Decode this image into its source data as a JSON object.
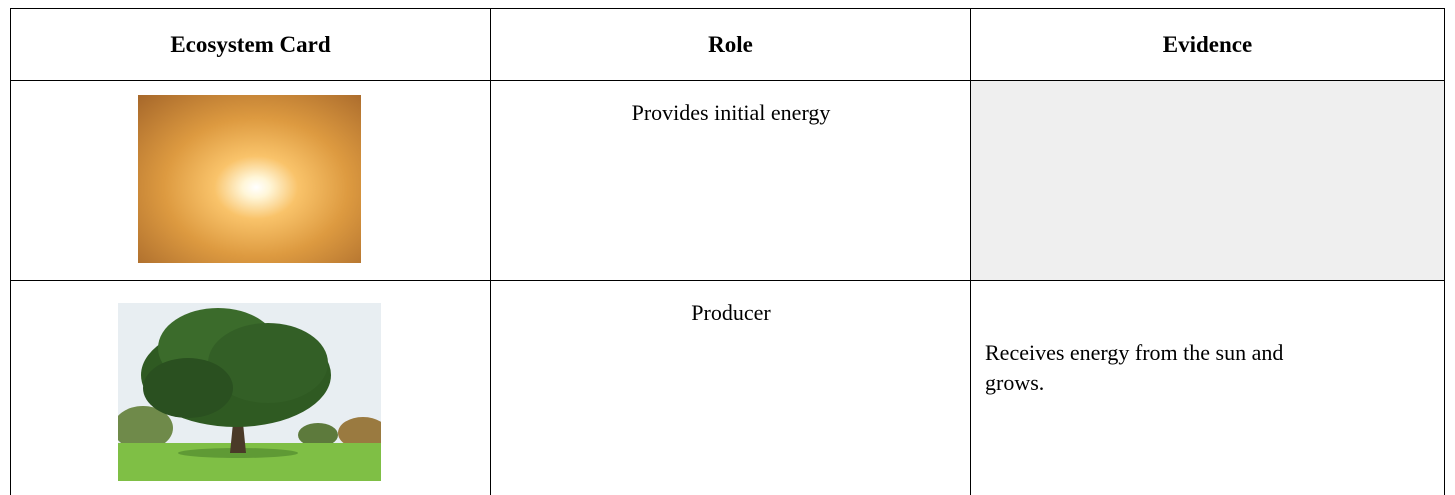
{
  "table": {
    "headers": [
      "Ecosystem Card",
      "Role",
      "Evidence"
    ],
    "rows": [
      {
        "role": "Provides initial energy"
      },
      {
        "role": "Producer",
        "evidence": "Receives energy from the sun and grows."
      }
    ]
  }
}
